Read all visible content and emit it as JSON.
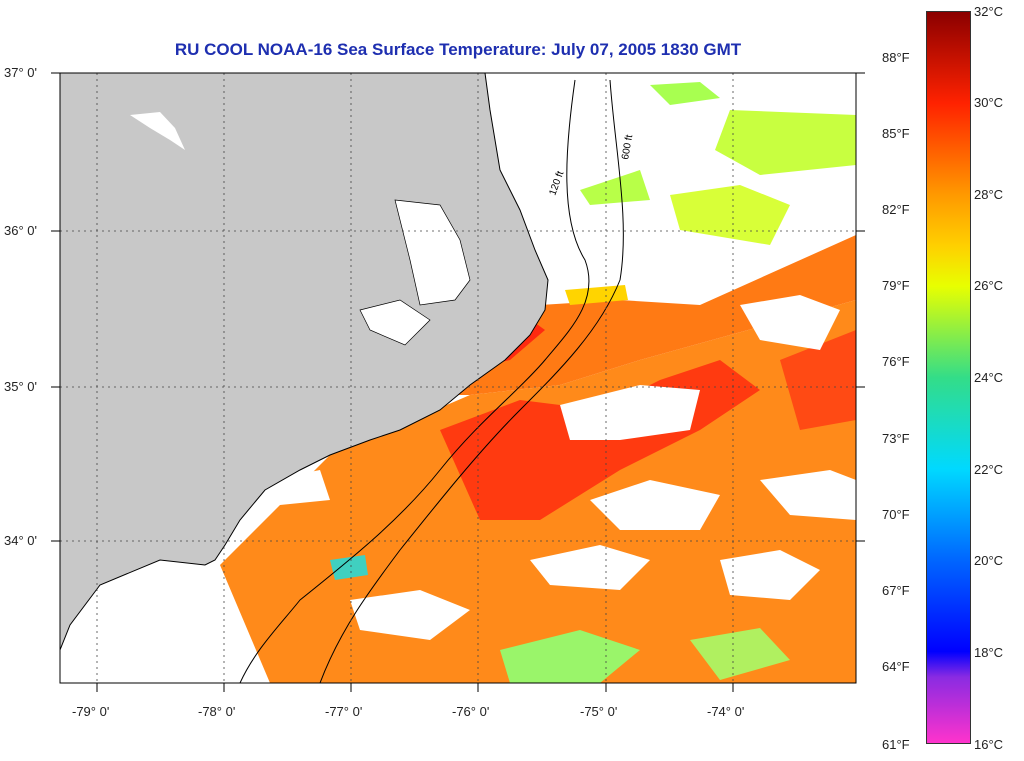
{
  "title": "RU COOL  NOAA-16  Sea Surface Temperature:  July 07, 2005 1830 GMT",
  "latitude_labels": [
    "37° 0'",
    "36° 0'",
    "35° 0'",
    "34° 0'"
  ],
  "longitude_labels": [
    "-79° 0'",
    "-78° 0'",
    "-77° 0'",
    "-76° 0'",
    "-75° 0'",
    "-74° 0'"
  ],
  "contour_labels": [
    "120 ft",
    "600 ft"
  ],
  "colorbar": {
    "fahrenheit_ticks": [
      "88°F",
      "85°F",
      "82°F",
      "79°F",
      "76°F",
      "73°F",
      "70°F",
      "67°F",
      "64°F",
      "61°F"
    ],
    "celsius_ticks": [
      "32°C",
      "30°C",
      "28°C",
      "26°C",
      "24°C",
      "22°C",
      "20°C",
      "18°C",
      "16°C"
    ],
    "range_c": [
      16,
      32
    ],
    "colors": {
      "c16": "#ff33cc",
      "c17": "#8a2be2",
      "c18": "#0000ff",
      "c20": "#0066ff",
      "c22": "#00d9ff",
      "c24": "#33dd88",
      "c26": "#e8ff00",
      "c27": "#ffd000",
      "c28": "#ff9900",
      "c30": "#ff2200",
      "c32": "#8b0000"
    }
  },
  "colors": {
    "land": "#c8c8c8",
    "sst_warm": "#ff8a1a",
    "sst_hot": "#ff2a10",
    "sst_cool": "#c8ff40",
    "title": "#1e2fb0"
  }
}
